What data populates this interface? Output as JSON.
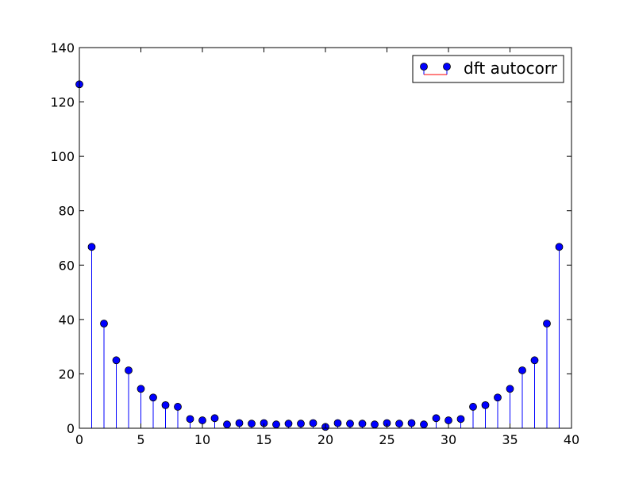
{
  "colors": {
    "stem": "#0000ff",
    "marker": "#0000ff",
    "baseline": "#ff0000",
    "axes": "#000000",
    "background": "#ffffff"
  },
  "chart_data": {
    "type": "stem",
    "title": "",
    "xlabel": "",
    "ylabel": "",
    "xlim": [
      0,
      40
    ],
    "ylim": [
      0,
      140
    ],
    "x_ticks": [
      0,
      5,
      10,
      15,
      20,
      25,
      30,
      35,
      40
    ],
    "y_ticks": [
      0,
      20,
      40,
      60,
      80,
      100,
      120,
      140
    ],
    "x_tick_labels": [
      "0",
      "5",
      "10",
      "15",
      "20",
      "25",
      "30",
      "35",
      "40"
    ],
    "y_tick_labels": [
      "0",
      "20",
      "40",
      "60",
      "80",
      "100",
      "120",
      "140"
    ],
    "grid": false,
    "legend": {
      "position": "top-right",
      "entries": [
        "dft autocorr"
      ]
    },
    "series": [
      {
        "name": "dft autocorr",
        "marker": "circle",
        "x": [
          0,
          1,
          2,
          3,
          4,
          5,
          6,
          7,
          8,
          9,
          10,
          11,
          12,
          13,
          14,
          15,
          16,
          17,
          18,
          19,
          20,
          21,
          22,
          23,
          24,
          25,
          26,
          27,
          28,
          29,
          30,
          31,
          32,
          33,
          34,
          35,
          36,
          37,
          38,
          39
        ],
        "y": [
          126.5,
          66.7,
          38.5,
          25.0,
          21.3,
          14.5,
          11.3,
          8.5,
          7.9,
          3.4,
          2.9,
          3.7,
          1.4,
          1.9,
          1.7,
          1.9,
          1.4,
          1.7,
          1.7,
          1.9,
          0.5,
          1.9,
          1.7,
          1.7,
          1.4,
          1.9,
          1.7,
          1.9,
          1.4,
          3.7,
          2.9,
          3.4,
          7.9,
          8.5,
          11.3,
          14.5,
          21.3,
          25.0,
          38.5,
          66.7
        ]
      }
    ]
  }
}
